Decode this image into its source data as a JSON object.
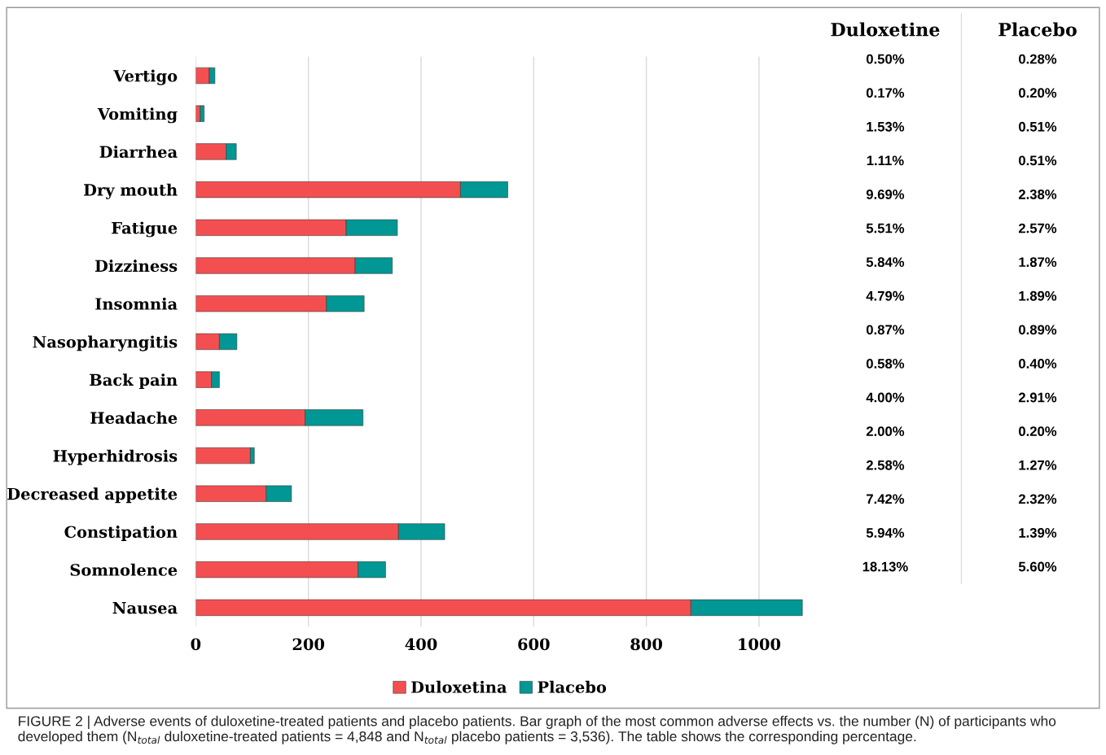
{
  "chart_data": [
    {
      "type": "bar",
      "orientation": "horizontal",
      "stacked": true,
      "categories": [
        "Vertigo",
        "Vomiting",
        "Diarrhea",
        "Dry mouth",
        "Fatigue",
        "Dizziness",
        "Insomnia",
        "Nasopharyngitis",
        "Back pain",
        "Headache",
        "Hyperhidrosis",
        "Decreased appetite",
        "Constipation",
        "Somnolence",
        "Nausea"
      ],
      "series": [
        {
          "name": "Duloxetina",
          "color": "#f44f50",
          "values": [
            24,
            8,
            54,
            470,
            267,
            283,
            232,
            42,
            28,
            194,
            97,
            125,
            360,
            288,
            879
          ]
        },
        {
          "name": "Placebo",
          "color": "#009794",
          "values": [
            10,
            7,
            18,
            84,
            91,
            66,
            67,
            31,
            14,
            103,
            7,
            45,
            82,
            49,
            198
          ]
        }
      ],
      "xlim": [
        0,
        1080
      ],
      "xticks": [
        0,
        200,
        400,
        600,
        800,
        1000
      ],
      "grid": "x",
      "legend": "bottom",
      "annotations": [
        "FIGURE 2 | Adverse events of duloxetine-treated patients and placebo patients. Bar graph of the most common adverse effects vs. the number (N) of participants who developed them (N$_{total}$ duloxetine-treated patients = 4,848 and N$_{total}$ placebo patients = 3,536). The table shows the corresponding percentage."
      ]
    },
    {
      "type": "other",
      "categories": [
        "Duloxetine",
        "Placebo"
      ],
      "annotations": [
        "0.50%",
        "0.28%",
        "0.17%",
        "0.20%",
        "1.53%",
        "0.51%",
        "1.11%",
        "0.51%",
        "9.69%",
        "2.38%",
        "5.51%",
        "2.57%",
        "5.84%",
        "1.87%",
        "4.79%",
        "1.89%",
        "0.87%",
        "0.89%",
        "0.58%",
        "0.40%",
        "4.00%",
        "2.91%",
        "2.00%",
        "0.20%",
        "2.58%",
        "1.27%",
        "7.42%",
        "2.32%",
        "5.94%",
        "1.39%",
        "18.13%",
        "5.60%"
      ]
    }
  ]
}
